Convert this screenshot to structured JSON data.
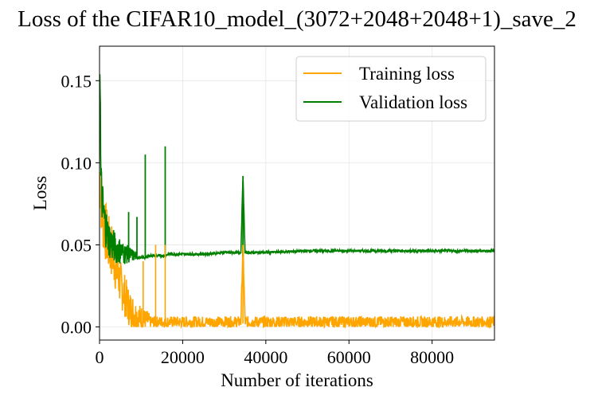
{
  "chart_data": {
    "type": "line",
    "title": "Loss of the CIFAR10_model_(3072+2048+2048+1)_save_2",
    "xlabel": "Number of iterations",
    "ylabel": "Loss",
    "xlim": [
      0,
      95000
    ],
    "ylim": [
      -0.008,
      0.171
    ],
    "xticks": [
      0,
      20000,
      40000,
      60000,
      80000
    ],
    "xtick_labels": [
      "0",
      "20000",
      "40000",
      "60000",
      "80000"
    ],
    "yticks": [
      0.0,
      0.05,
      0.1,
      0.15
    ],
    "ytick_labels": [
      "0.00",
      "0.05",
      "0.10",
      "0.15"
    ],
    "grid": true,
    "legend_position": "top-right",
    "series": [
      {
        "name": "Training loss",
        "color": "#FFA500",
        "x": [
          0,
          300,
          600,
          1000,
          1500,
          2000,
          2500,
          3000,
          3500,
          4000,
          4500,
          5000,
          5500,
          6000,
          6500,
          7000,
          7500,
          8000,
          8500,
          9000,
          9500,
          10000,
          10500,
          11000,
          11500,
          12000,
          13000,
          14000,
          15000,
          15500,
          16000,
          17000,
          18000,
          20000,
          22000,
          25000,
          28000,
          30000,
          33000,
          34000,
          34500,
          35000,
          36000,
          40000,
          45000,
          50000,
          55000,
          60000,
          65000,
          70000,
          75000,
          80000,
          85000,
          90000,
          95000
        ],
        "values": [
          0.088,
          0.075,
          0.065,
          0.057,
          0.052,
          0.046,
          0.043,
          0.041,
          0.036,
          0.031,
          0.027,
          0.022,
          0.019,
          0.016,
          0.012,
          0.009,
          0.007,
          0.006,
          0.004,
          0.004,
          0.003,
          0.003,
          0.002,
          0.002,
          0.002,
          0.002,
          0.002,
          0.002,
          0.002,
          0.002,
          0.002,
          0.002,
          0.002,
          0.002,
          0.002,
          0.002,
          0.002,
          0.002,
          0.002,
          0.002,
          0.05,
          0.002,
          0.002,
          0.002,
          0.002,
          0.002,
          0.002,
          0.002,
          0.002,
          0.002,
          0.002,
          0.002,
          0.002,
          0.002,
          0.002
        ]
      },
      {
        "name": "Validation loss",
        "color": "#008000",
        "x": [
          0,
          100,
          300,
          600,
          1000,
          1500,
          2000,
          2500,
          3000,
          4000,
          5000,
          6000,
          7000,
          8000,
          9000,
          10000,
          11000,
          12000,
          13000,
          14000,
          15000,
          15800,
          16500,
          18000,
          20000,
          25000,
          30000,
          34000,
          34500,
          35000,
          40000,
          50000,
          60000,
          70000,
          80000,
          90000,
          95000
        ],
        "values": [
          0.12,
          0.165,
          0.085,
          0.072,
          0.063,
          0.056,
          0.051,
          0.048,
          0.046,
          0.044,
          0.043,
          0.042,
          0.042,
          0.042,
          0.042,
          0.042,
          0.042,
          0.043,
          0.043,
          0.043,
          0.043,
          0.043,
          0.044,
          0.044,
          0.044,
          0.044,
          0.045,
          0.045,
          0.092,
          0.045,
          0.045,
          0.046,
          0.046,
          0.046,
          0.046,
          0.046,
          0.046
        ]
      }
    ]
  }
}
